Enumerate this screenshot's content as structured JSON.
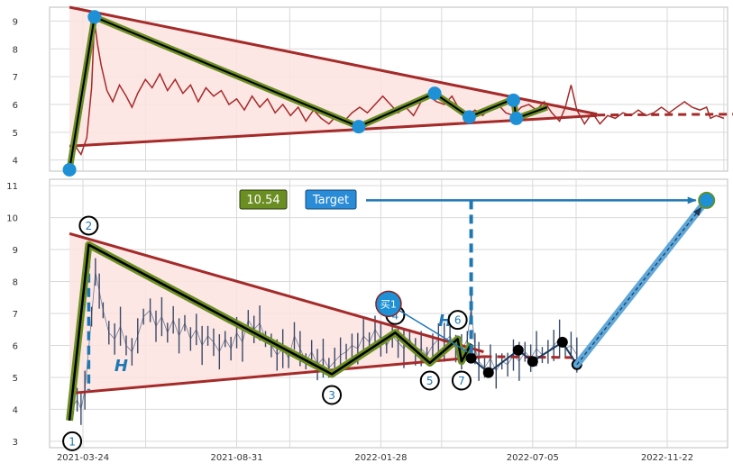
{
  "colors": {
    "price_line": "#a52a2a",
    "trend_line": "#a52a2a",
    "wave_outer": "#6b8e23",
    "wave_inner": "#000000",
    "triangle_fill": "#fbe3df",
    "pivot_blue": "#1e90d6",
    "annotation_blue": "#1f78b4",
    "target_box": "#2a8bd6",
    "value_box": "#6b8e23",
    "candle": "#3a4a6a",
    "grid": "#d9d9d9"
  },
  "chart_data": [
    {
      "type": "line",
      "panel": "top",
      "ylim": [
        3.6,
        9.5
      ],
      "y_ticks": [
        "4",
        "5",
        "6",
        "7",
        "8",
        "9"
      ],
      "grid": true,
      "x_start": "2021-03-10",
      "x_end": "2023-01-31",
      "series": [
        {
          "role": "price",
          "points": [
            [
              "2021-03-10",
              4.3
            ],
            [
              "2021-03-16",
              4.5
            ],
            [
              "2021-03-22",
              4.2
            ],
            [
              "2021-03-28",
              4.8
            ],
            [
              "2021-04-02",
              6.6
            ],
            [
              "2021-04-05",
              9.0
            ],
            [
              "2021-04-08",
              8.2
            ],
            [
              "2021-04-12",
              7.4
            ],
            [
              "2021-04-18",
              6.5
            ],
            [
              "2021-04-24",
              6.1
            ],
            [
              "2021-05-01",
              6.7
            ],
            [
              "2021-05-08",
              6.3
            ],
            [
              "2021-05-14",
              5.9
            ],
            [
              "2021-05-20",
              6.4
            ],
            [
              "2021-05-28",
              6.9
            ],
            [
              "2021-06-04",
              6.6
            ],
            [
              "2021-06-12",
              7.1
            ],
            [
              "2021-06-20",
              6.5
            ],
            [
              "2021-06-28",
              6.9
            ],
            [
              "2021-07-06",
              6.4
            ],
            [
              "2021-07-14",
              6.7
            ],
            [
              "2021-07-22",
              6.1
            ],
            [
              "2021-07-30",
              6.6
            ],
            [
              "2021-08-07",
              6.3
            ],
            [
              "2021-08-15",
              6.5
            ],
            [
              "2021-08-23",
              6.0
            ],
            [
              "2021-08-31",
              6.2
            ],
            [
              "2021-09-08",
              5.8
            ],
            [
              "2021-09-16",
              6.3
            ],
            [
              "2021-09-24",
              5.9
            ],
            [
              "2021-10-02",
              6.2
            ],
            [
              "2021-10-10",
              5.7
            ],
            [
              "2021-10-18",
              6.0
            ],
            [
              "2021-10-26",
              5.6
            ],
            [
              "2021-11-03",
              5.9
            ],
            [
              "2021-11-11",
              5.4
            ],
            [
              "2021-11-19",
              5.8
            ],
            [
              "2021-11-27",
              5.5
            ],
            [
              "2021-12-05",
              5.3
            ],
            [
              "2021-12-13",
              5.6
            ],
            [
              "2021-12-21",
              5.4
            ],
            [
              "2021-12-29",
              5.7
            ],
            [
              "2022-01-06",
              5.9
            ],
            [
              "2022-01-14",
              5.7
            ],
            [
              "2022-01-22",
              6.0
            ],
            [
              "2022-01-30",
              6.3
            ],
            [
              "2022-02-07",
              6.0
            ],
            [
              "2022-02-15",
              5.7
            ],
            [
              "2022-02-23",
              5.9
            ],
            [
              "2022-03-03",
              5.6
            ],
            [
              "2022-03-11",
              6.1
            ],
            [
              "2022-03-19",
              6.3
            ],
            [
              "2022-03-27",
              6.1
            ],
            [
              "2022-04-04",
              6.0
            ],
            [
              "2022-04-12",
              6.3
            ],
            [
              "2022-04-20",
              5.8
            ],
            [
              "2022-04-28",
              5.6
            ],
            [
              "2022-05-06",
              5.8
            ],
            [
              "2022-05-14",
              5.6
            ],
            [
              "2022-05-22",
              5.9
            ],
            [
              "2022-05-30",
              6.0
            ],
            [
              "2022-06-07",
              5.7
            ],
            [
              "2022-06-15",
              5.6
            ],
            [
              "2022-06-23",
              5.9
            ],
            [
              "2022-07-01",
              6.0
            ],
            [
              "2022-07-09",
              5.8
            ],
            [
              "2022-07-17",
              6.1
            ],
            [
              "2022-07-25",
              5.7
            ],
            [
              "2022-08-02",
              5.4
            ],
            [
              "2022-08-08",
              5.9
            ],
            [
              "2022-08-14",
              6.7
            ],
            [
              "2022-08-20",
              5.8
            ],
            [
              "2022-08-28",
              5.3
            ],
            [
              "2022-09-05",
              5.7
            ],
            [
              "2022-09-13",
              5.3
            ],
            [
              "2022-09-21",
              5.6
            ],
            [
              "2022-09-29",
              5.5
            ],
            [
              "2022-10-07",
              5.7
            ],
            [
              "2022-10-15",
              5.6
            ],
            [
              "2022-10-23",
              5.8
            ],
            [
              "2022-10-31",
              5.6
            ],
            [
              "2022-11-08",
              5.7
            ],
            [
              "2022-11-16",
              5.9
            ],
            [
              "2022-11-24",
              5.7
            ],
            [
              "2022-12-02",
              5.9
            ],
            [
              "2022-12-10",
              6.1
            ],
            [
              "2022-12-18",
              5.9
            ],
            [
              "2022-12-26",
              5.8
            ],
            [
              "2023-01-02",
              5.9
            ],
            [
              "2023-01-06",
              5.5
            ],
            [
              "2023-01-12",
              5.6
            ],
            [
              "2023-01-20",
              5.5
            ]
          ]
        },
        {
          "role": "wave",
          "points": [
            [
              "2021-03-10",
              3.65
            ],
            [
              "2021-04-05",
              9.15
            ],
            [
              "2022-01-05",
              5.2
            ],
            [
              "2022-03-25",
              6.4
            ],
            [
              "2022-04-30",
              5.55
            ],
            [
              "2022-06-15",
              6.2
            ],
            [
              "2022-06-18",
              5.5
            ],
            [
              "2022-07-20",
              5.9
            ]
          ]
        },
        {
          "role": "pivots",
          "points": [
            [
              "2021-03-10",
              3.65
            ],
            [
              "2021-04-05",
              9.15
            ],
            [
              "2022-01-05",
              5.2
            ],
            [
              "2022-03-25",
              6.4
            ],
            [
              "2022-04-30",
              5.55
            ],
            [
              "2022-06-15",
              6.15
            ],
            [
              "2022-06-18",
              5.5
            ]
          ]
        },
        {
          "role": "upper-trendline",
          "points": [
            [
              "2021-03-10",
              9.5
            ],
            [
              "2022-09-10",
              5.65
            ]
          ]
        },
        {
          "role": "lower-trendline",
          "points": [
            [
              "2021-03-10",
              4.5
            ],
            [
              "2022-09-10",
              5.6
            ]
          ]
        },
        {
          "role": "projection",
          "points": [
            [
              "2022-09-10",
              5.62
            ],
            [
              "2023-01-31",
              5.65
            ]
          ]
        }
      ]
    },
    {
      "type": "line",
      "panel": "bottom",
      "ylim": [
        2.8,
        11.2
      ],
      "y_ticks": [
        "3",
        "4",
        "5",
        "6",
        "7",
        "8",
        "9",
        "10",
        "11"
      ],
      "x_ticks": [
        "2021-03-24",
        "2021-08-31",
        "2022-01-28",
        "2022-07-05",
        "2022-11-22"
      ],
      "grid": true,
      "value_label": "10.54",
      "target_label": "Target",
      "buy_label": "买1",
      "height_label": "H",
      "wave_labels": [
        "1",
        "2",
        "3",
        "4",
        "5",
        "6",
        "7"
      ],
      "wave_points": [
        [
          "2021-03-10",
          3.65
        ],
        [
          "2021-03-30",
          9.15
        ],
        [
          "2021-12-08",
          5.1
        ],
        [
          "2022-02-12",
          6.4
        ],
        [
          "2022-03-20",
          5.45
        ],
        [
          "2022-04-18",
          6.2
        ],
        [
          "2022-04-22",
          5.5
        ],
        [
          "2022-05-02",
          6.05
        ]
      ],
      "upper-trendline": [
        [
          "2021-03-10",
          9.5
        ],
        [
          "2022-05-15",
          5.8
        ]
      ],
      "lower-trendline": [
        [
          "2021-03-10",
          4.5
        ],
        [
          "2022-05-15",
          5.65
        ]
      ],
      "forecast_points": [
        [
          "2022-05-02",
          5.6
        ],
        [
          "2022-05-20",
          5.15
        ],
        [
          "2022-06-20",
          5.85
        ],
        [
          "2022-07-05",
          5.5
        ],
        [
          "2022-08-05",
          6.1
        ],
        [
          "2022-08-20",
          5.4
        ]
      ],
      "forecast_target_point": [
        "2023-01-02",
        10.54
      ],
      "target_arrow": [
        [
          "2022-05-02",
          10.54
        ],
        [
          "2023-01-02",
          10.54
        ]
      ],
      "target_drop": [
        [
          "2022-05-02",
          10.54
        ],
        [
          "2022-05-02",
          5.7
        ]
      ],
      "height_marker": [
        [
          "2021-03-30",
          9.15
        ],
        [
          "2021-03-30",
          4.6
        ]
      ],
      "buy_marker": [
        "2022-02-05",
        7.3
      ],
      "buy_arrow_to": [
        "2022-04-28",
        5.8
      ],
      "candles": [
        [
          "2021-03-14",
          4.1
        ],
        [
          "2021-03-18",
          4.3
        ],
        [
          "2021-03-22",
          4.0
        ],
        [
          "2021-03-26",
          4.6
        ],
        [
          "2021-04-02",
          6.9
        ],
        [
          "2021-04-06",
          8.3
        ],
        [
          "2021-04-10",
          7.7
        ],
        [
          "2021-04-14",
          7.1
        ],
        [
          "2021-04-20",
          6.4
        ],
        [
          "2021-04-26",
          6.2
        ],
        [
          "2021-05-02",
          6.6
        ],
        [
          "2021-05-08",
          6.0
        ],
        [
          "2021-05-14",
          5.8
        ],
        [
          "2021-05-20",
          6.3
        ],
        [
          "2021-05-26",
          6.9
        ],
        [
          "2021-06-02",
          7.1
        ],
        [
          "2021-06-08",
          6.6
        ],
        [
          "2021-06-14",
          6.9
        ],
        [
          "2021-06-20",
          6.4
        ],
        [
          "2021-06-26",
          6.8
        ],
        [
          "2021-07-02",
          6.3
        ],
        [
          "2021-07-08",
          6.7
        ],
        [
          "2021-07-14",
          6.2
        ],
        [
          "2021-07-20",
          6.5
        ],
        [
          "2021-07-26",
          6.0
        ],
        [
          "2021-08-01",
          6.3
        ],
        [
          "2021-08-07",
          6.1
        ],
        [
          "2021-08-13",
          5.8
        ],
        [
          "2021-08-19",
          6.2
        ],
        [
          "2021-08-25",
          5.9
        ],
        [
          "2021-08-31",
          6.4
        ],
        [
          "2021-09-06",
          6.1
        ],
        [
          "2021-09-12",
          6.8
        ],
        [
          "2021-09-18",
          6.5
        ],
        [
          "2021-09-24",
          6.7
        ],
        [
          "2021-09-30",
          6.2
        ],
        [
          "2021-10-06",
          6.0
        ],
        [
          "2021-10-12",
          5.7
        ],
        [
          "2021-10-18",
          5.9
        ],
        [
          "2021-10-24",
          5.6
        ],
        [
          "2021-10-30",
          6.3
        ],
        [
          "2021-11-05",
          5.9
        ],
        [
          "2021-11-11",
          5.5
        ],
        [
          "2021-11-17",
          5.8
        ],
        [
          "2021-11-23",
          5.4
        ],
        [
          "2021-11-29",
          5.6
        ],
        [
          "2021-12-05",
          5.3
        ],
        [
          "2021-12-11",
          5.5
        ],
        [
          "2021-12-17",
          5.7
        ],
        [
          "2021-12-23",
          5.8
        ],
        [
          "2021-12-29",
          6.0
        ],
        [
          "2022-01-04",
          5.9
        ],
        [
          "2022-01-10",
          6.3
        ],
        [
          "2022-01-16",
          6.1
        ],
        [
          "2022-01-22",
          6.5
        ],
        [
          "2022-01-28",
          6.2
        ],
        [
          "2022-02-03",
          6.0
        ],
        [
          "2022-02-09",
          6.3
        ],
        [
          "2022-02-15",
          6.1
        ],
        [
          "2022-02-21",
          5.9
        ],
        [
          "2022-02-27",
          6.2
        ],
        [
          "2022-03-05",
          5.8
        ],
        [
          "2022-03-11",
          5.9
        ],
        [
          "2022-03-17",
          5.7
        ],
        [
          "2022-03-23",
          6.0
        ],
        [
          "2022-03-29",
          6.2
        ],
        [
          "2022-04-04",
          6.1
        ],
        [
          "2022-04-10",
          6.3
        ],
        [
          "2022-04-16",
          5.9
        ],
        [
          "2022-04-22",
          5.8
        ],
        [
          "2022-04-28",
          6.2
        ],
        [
          "2022-05-02",
          7.2
        ],
        [
          "2022-05-06",
          5.9
        ],
        [
          "2022-05-10",
          5.5
        ],
        [
          "2022-05-16",
          5.3
        ],
        [
          "2022-05-22",
          5.6
        ],
        [
          "2022-05-28",
          5.2
        ],
        [
          "2022-06-03",
          5.5
        ],
        [
          "2022-06-09",
          5.4
        ],
        [
          "2022-06-15",
          5.7
        ],
        [
          "2022-06-21",
          5.5
        ],
        [
          "2022-06-27",
          5.8
        ],
        [
          "2022-07-03",
          5.6
        ],
        [
          "2022-07-09",
          5.9
        ],
        [
          "2022-07-15",
          5.7
        ],
        [
          "2022-07-21",
          5.8
        ],
        [
          "2022-07-27",
          6.0
        ],
        [
          "2022-08-02",
          6.2
        ],
        [
          "2022-08-08",
          5.9
        ],
        [
          "2022-08-14",
          6.0
        ],
        [
          "2022-08-20",
          5.7
        ]
      ]
    }
  ]
}
